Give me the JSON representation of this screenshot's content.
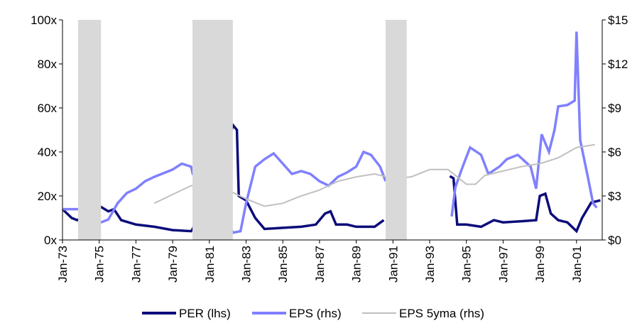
{
  "chart_data": {
    "type": "line",
    "xlim": [
      1973,
      2002.4
    ],
    "xticks": [
      {
        "value": 1973,
        "label": "Jan-73"
      },
      {
        "value": 1975,
        "label": "Jan-75"
      },
      {
        "value": 1977,
        "label": "Jan-77"
      },
      {
        "value": 1979,
        "label": "Jan-79"
      },
      {
        "value": 1981,
        "label": "Jan-81"
      },
      {
        "value": 1983,
        "label": "Jan-83"
      },
      {
        "value": 1985,
        "label": "Jan-85"
      },
      {
        "value": 1987,
        "label": "Jan-87"
      },
      {
        "value": 1989,
        "label": "Jan-89"
      },
      {
        "value": 1991,
        "label": "Jan-91"
      },
      {
        "value": 1993,
        "label": "Jan-93"
      },
      {
        "value": 1995,
        "label": "Jan-95"
      },
      {
        "value": 1997,
        "label": "Jan-97"
      },
      {
        "value": 1999,
        "label": "Jan-99"
      },
      {
        "value": 2001,
        "label": "Jan-01"
      }
    ],
    "ylim": [
      0,
      100
    ],
    "yticks": [
      {
        "value": 0,
        "label": "0x"
      },
      {
        "value": 20,
        "label": "20x"
      },
      {
        "value": 40,
        "label": "40x"
      },
      {
        "value": 60,
        "label": "60x"
      },
      {
        "value": 80,
        "label": "80x"
      },
      {
        "value": 100,
        "label": "100x"
      }
    ],
    "y2lim": [
      0,
      15
    ],
    "y2ticks": [
      {
        "value": 0,
        "label": "$0"
      },
      {
        "value": 3,
        "label": "$3"
      },
      {
        "value": 6,
        "label": "$6"
      },
      {
        "value": 9,
        "label": "$9"
      },
      {
        "value": 12,
        "label": "$12"
      },
      {
        "value": 15,
        "label": "$15"
      }
    ],
    "shaded_x": [
      [
        1973.85,
        1975.1
      ],
      [
        1980.08,
        1982.28
      ],
      [
        1990.6,
        1991.75
      ]
    ],
    "shaded_color": "#d9d9d9",
    "series": [
      {
        "name": "PER (lhs)",
        "color": "#0c0c7a",
        "x": [
          1973,
          1973.5,
          1973.8,
          1975.1,
          1975.5,
          1975.8,
          1976.2,
          1977,
          1978,
          1979,
          1980,
          1980.1,
          1982.3,
          1982.5,
          1982.6,
          1983,
          1983.5,
          1984,
          1985,
          1986,
          1986.8,
          1987.3,
          1987.6,
          1987.9,
          1988.5,
          1989,
          1990,
          1990.5,
          1992,
          1994.1,
          1994.3,
          1994.5,
          1995,
          1995.8,
          1996.5,
          1997,
          1998,
          1998.8,
          1999,
          1999.3,
          1999.6,
          2000,
          2000.5,
          2001,
          2001.3,
          2001.8,
          2002.3
        ],
        "values": [
          14,
          10,
          9,
          15,
          13,
          14,
          9,
          7,
          6,
          4.5,
          4,
          5,
          52,
          50,
          20,
          18,
          10,
          5,
          5.5,
          6,
          7,
          12,
          13,
          7,
          7,
          6,
          6,
          9,
          null,
          29,
          28,
          7,
          7,
          6,
          9,
          8,
          8.5,
          9,
          20,
          21,
          12,
          9,
          8,
          4,
          10,
          17,
          18
        ]
      },
      {
        "name": "EPS (rhs)",
        "color": "#8080ff",
        "axis": "y2",
        "x": [
          1973,
          1974,
          1975.1,
          1975.5,
          1976,
          1976.5,
          1977,
          1977.5,
          1978,
          1979,
          1979.5,
          1980,
          1980.1,
          1982.3,
          1982.7,
          1983,
          1983.5,
          1984,
          1984.5,
          1985,
          1985.5,
          1986,
          1986.5,
          1987,
          1987.5,
          1988,
          1988.5,
          1989,
          1989.4,
          1989.8,
          1990.3,
          1990.6,
          1992,
          1994.2,
          1994.4,
          1994.8,
          1995.2,
          1995.8,
          1996.2,
          1996.8,
          1997.2,
          1997.8,
          1998.5,
          1998.8,
          1999.1,
          1999.5,
          1999.8,
          2000,
          2000.5,
          2000.9,
          2001,
          2001.2,
          2001.6,
          2001.9,
          2002.1
        ],
        "values": [
          2.1,
          2.1,
          1.2,
          1.4,
          2.5,
          3.2,
          3.5,
          4,
          4.3,
          4.8,
          5.2,
          5,
          4.5,
          0.5,
          0.6,
          2.5,
          5,
          5.5,
          5.9,
          5.2,
          4.5,
          4.7,
          4.5,
          4,
          3.7,
          4.3,
          4.6,
          5,
          6,
          5.8,
          5,
          4,
          null,
          1.6,
          3.6,
          5,
          6.3,
          5.8,
          4.5,
          5,
          5.5,
          5.8,
          5,
          3.5,
          7.2,
          6,
          7.5,
          9.1,
          9.2,
          9.5,
          14.2,
          6.8,
          4.4,
          2.5,
          2.2
        ]
      },
      {
        "name": "EPS 5yma (rhs)",
        "color": "#c0c0c0",
        "axis": "y2",
        "x": [
          1978,
          1979,
          1980,
          1981,
          1982,
          1983,
          1984,
          1985,
          1986,
          1987,
          1988,
          1989,
          1990,
          1991,
          1992,
          1993,
          1994,
          1995,
          1995.5,
          1996,
          1997,
          1998,
          1999,
          2000,
          2001,
          2002
        ],
        "values": [
          2.5,
          3.1,
          3.7,
          3.6,
          3.4,
          2.8,
          2.3,
          2.5,
          3,
          3.4,
          4,
          4.3,
          4.5,
          4.2,
          4.3,
          4.8,
          4.8,
          3.8,
          3.8,
          4.4,
          4.7,
          5,
          5.2,
          5.6,
          6.3,
          6.5
        ]
      }
    ]
  }
}
